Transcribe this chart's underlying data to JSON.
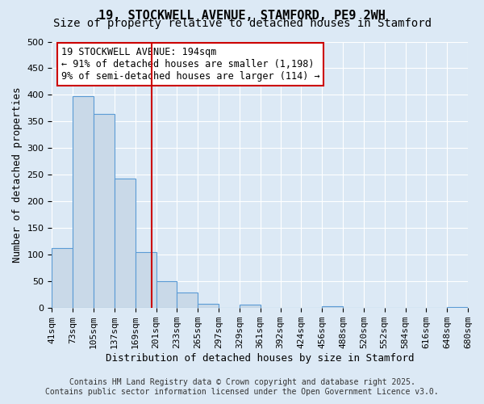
{
  "title_line1": "19, STOCKWELL AVENUE, STAMFORD, PE9 2WH",
  "title_line2": "Size of property relative to detached houses in Stamford",
  "xlabel": "Distribution of detached houses by size in Stamford",
  "ylabel": "Number of detached properties",
  "bar_edges": [
    41,
    73,
    105,
    137,
    169,
    201,
    233,
    265,
    297,
    329,
    361,
    392,
    424,
    456,
    488,
    520,
    552,
    584,
    616,
    648,
    680
  ],
  "bar_heights": [
    113,
    398,
    365,
    243,
    105,
    50,
    29,
    8,
    0,
    6,
    0,
    1,
    0,
    3,
    0,
    0,
    0,
    1,
    0,
    2
  ],
  "bar_fill_color": "#c9d9e8",
  "bar_edge_color": "#5b9bd5",
  "vline_x": 194,
  "vline_color": "#cc0000",
  "annotation_text": "19 STOCKWELL AVENUE: 194sqm\n← 91% of detached houses are smaller (1,198)\n9% of semi-detached houses are larger (114) →",
  "annotation_box_color": "#ffffff",
  "annotation_box_edgecolor": "#cc0000",
  "ylim": [
    0,
    500
  ],
  "yticks": [
    0,
    50,
    100,
    150,
    200,
    250,
    300,
    350,
    400,
    450,
    500
  ],
  "background_color": "#dce9f5",
  "plot_bg_color": "#dce9f5",
  "footer_line1": "Contains HM Land Registry data © Crown copyright and database right 2025.",
  "footer_line2": "Contains public sector information licensed under the Open Government Licence v3.0.",
  "title_fontsize": 11,
  "subtitle_fontsize": 10,
  "axis_label_fontsize": 9,
  "tick_fontsize": 8,
  "annotation_fontsize": 8.5,
  "footer_fontsize": 7
}
